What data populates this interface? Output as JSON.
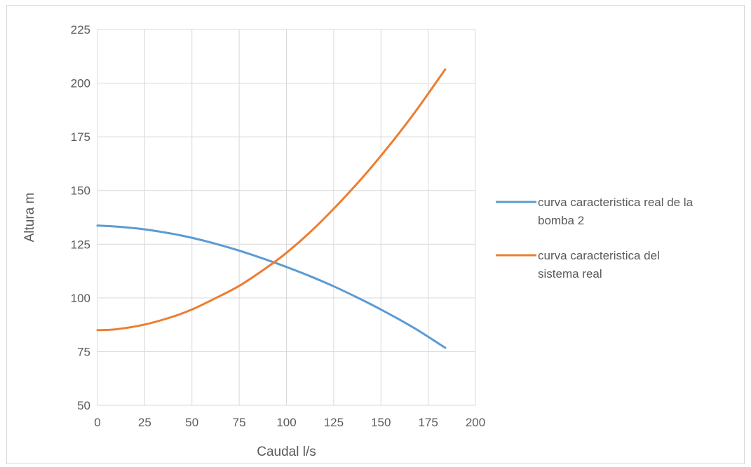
{
  "chart_data": {
    "type": "line",
    "title": "",
    "xlabel": "Caudal l/s",
    "ylabel": "Altura m",
    "xlim": [
      0,
      200
    ],
    "ylim": [
      50,
      225
    ],
    "x_ticks": [
      0,
      25,
      50,
      75,
      100,
      125,
      150,
      175,
      200
    ],
    "y_ticks": [
      50,
      75,
      100,
      125,
      150,
      175,
      200,
      225
    ],
    "grid": true,
    "legend_position": "right",
    "series": [
      {
        "name": "curva caracteristica real de la bomba 2",
        "color": "#5b9bd5",
        "x": [
          0,
          10,
          25,
          40,
          50,
          60,
          75,
          90,
          100,
          112,
          125,
          140,
          150,
          160,
          170,
          184
        ],
        "y": [
          133.7,
          133.2,
          131.9,
          129.8,
          128.0,
          125.8,
          122.0,
          117.6,
          114.4,
          110.3,
          105.4,
          99.1,
          94.6,
          89.8,
          84.7,
          76.8
        ]
      },
      {
        "name": "curva caracteristica del sistema real",
        "color": "#ed7d31",
        "x": [
          0,
          10,
          25,
          40,
          50,
          60,
          75,
          90,
          100,
          112,
          125,
          140,
          150,
          160,
          170,
          184
        ],
        "y": [
          85.0,
          85.4,
          87.6,
          91.3,
          94.6,
          98.8,
          105.6,
          114.4,
          121.0,
          130.2,
          141.5,
          155.8,
          166.2,
          177.2,
          188.9,
          206.4
        ]
      }
    ]
  }
}
